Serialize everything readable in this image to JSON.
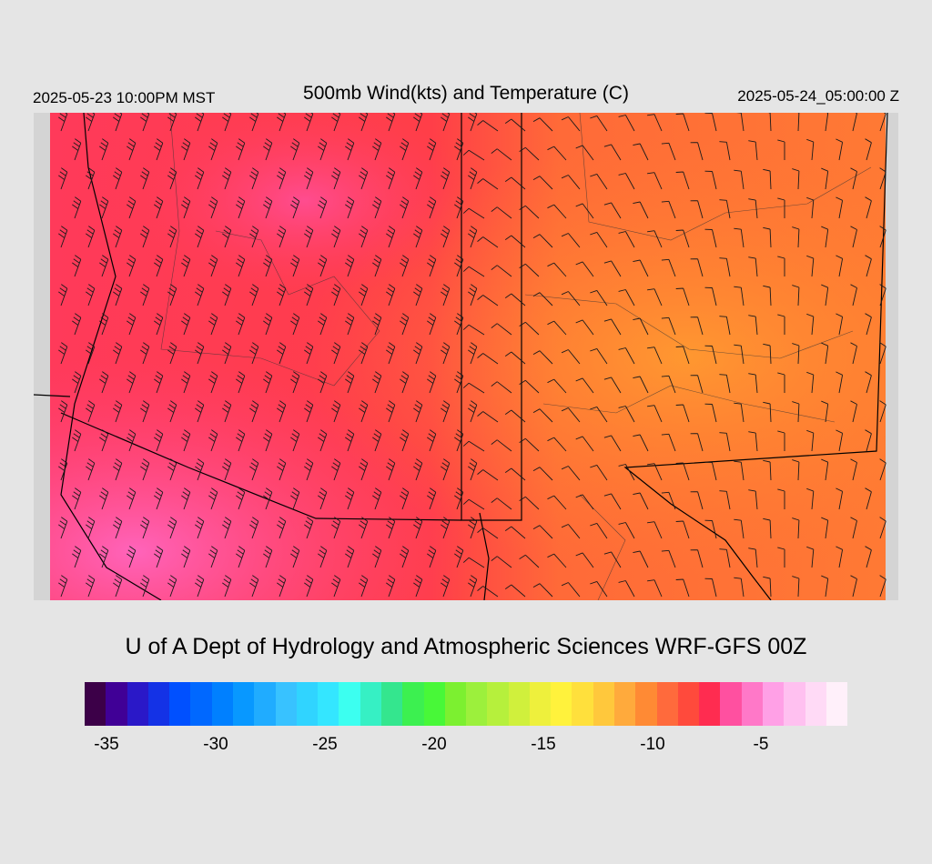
{
  "header": {
    "valid_local": "2025-05-23 10:00PM MST",
    "title": "500mb Wind(kts) and Temperature (C)",
    "valid_utc": "2025-05-24_05:00:00 Z"
  },
  "map": {
    "field": "500mb temperature (C) with wind barbs (kts)",
    "background_color": "#d4d4d4",
    "dominant_temperature_regions": [
      {
        "region": "west",
        "approx_temp_c": -8,
        "color": "#ff3c50"
      },
      {
        "region": "central",
        "approx_temp_c": -10,
        "color": "#ff4a3c"
      },
      {
        "region": "east",
        "approx_temp_c": -12,
        "color": "#ff8a34"
      },
      {
        "region": "southwest",
        "approx_temp_c": -6,
        "color": "#ff62b4"
      }
    ]
  },
  "footer": {
    "credit": "U of A Dept of Hydrology and Atmospheric Sciences WRF-GFS 00Z"
  },
  "colorbar": {
    "swatches": [
      "#3c0048",
      "#400096",
      "#2a18c8",
      "#1432e6",
      "#0050ff",
      "#0068ff",
      "#0080ff",
      "#0898ff",
      "#20acff",
      "#38c2ff",
      "#30d4ff",
      "#34e6ff",
      "#3cfff0",
      "#36f0c4",
      "#34e68e",
      "#3cf050",
      "#48f838",
      "#7cf030",
      "#9cf03c",
      "#b6f03c",
      "#d0f03c",
      "#eef03c",
      "#fff23c",
      "#ffe03c",
      "#ffc83c",
      "#ffaa3c",
      "#ff8a34",
      "#ff6a3c",
      "#ff4a3c",
      "#ff2c50",
      "#ff50a0",
      "#ff78c8",
      "#ffa0e6",
      "#ffc0f0",
      "#ffdaf6",
      "#fff0fa"
    ],
    "ticks": [
      "-35",
      "-30",
      "-25",
      "-20",
      "-15",
      "-10",
      "-5"
    ]
  }
}
